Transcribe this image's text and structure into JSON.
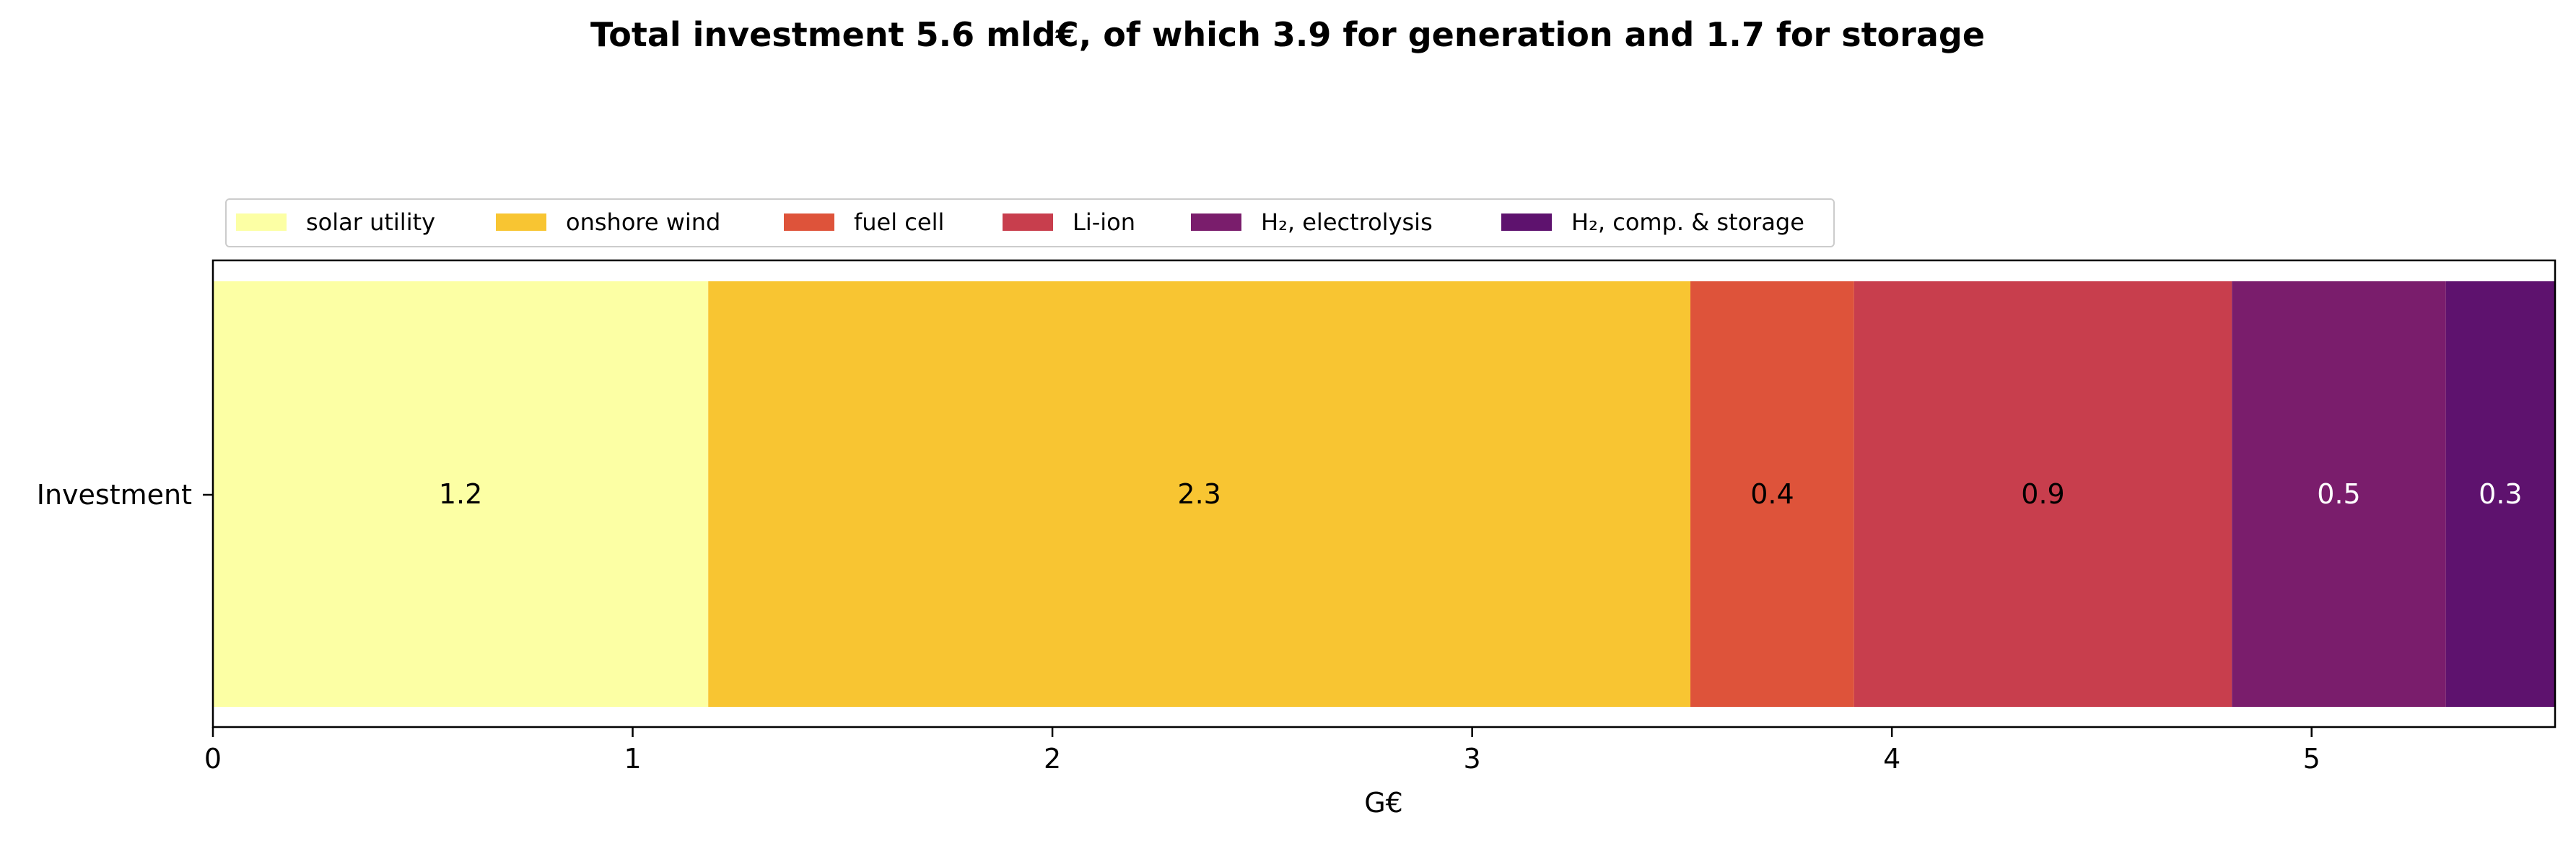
{
  "chart_data": {
    "type": "bar",
    "orientation": "horizontal",
    "stacked": true,
    "title": "Total investment 5.6 mld€, of which 3.9 for generation and 1.7 for storage",
    "xlabel": "G€",
    "ylabel": "",
    "categories": [
      "Investment"
    ],
    "xlim": [
      0,
      5.58
    ],
    "xticks": [
      "0",
      "1",
      "2",
      "3",
      "4",
      "5"
    ],
    "grid": false,
    "legend_position": "top-left, outside above plot, single row",
    "series": [
      {
        "name": "solar utility",
        "values": [
          1.18
        ],
        "data_label": "1.2",
        "color": "#fcffa4",
        "label_color": "#000000"
      },
      {
        "name": "onshore wind",
        "values": [
          2.34
        ],
        "data_label": "2.3",
        "color": "#f8c532",
        "label_color": "#000000"
      },
      {
        "name": "fuel cell",
        "values": [
          0.39
        ],
        "data_label": "0.4",
        "color": "#de533a",
        "label_color": "#000000"
      },
      {
        "name": "Li-ion",
        "values": [
          0.9
        ],
        "data_label": "0.9",
        "color": "#c83e4d",
        "label_color": "#000000"
      },
      {
        "name": "H₂, electrolysis",
        "values": [
          0.51
        ],
        "data_label": "0.5",
        "color": "#7a1d6c",
        "label_color": "#ffffff"
      },
      {
        "name": "H₂, comp. & storage",
        "values": [
          0.26
        ],
        "data_label": "0.3",
        "color": "#5e126e",
        "label_color": "#ffffff"
      }
    ]
  }
}
